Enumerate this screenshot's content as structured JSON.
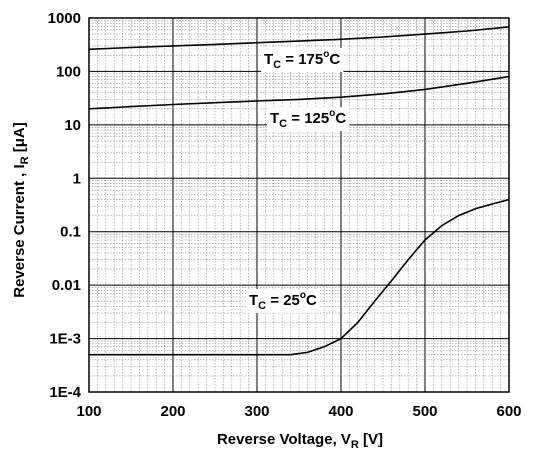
{
  "chart_data": {
    "type": "line",
    "title": "",
    "xlabel": {
      "main": "Reverse Voltage, V",
      "sub": "R",
      "unit": " [V]"
    },
    "ylabel": {
      "main": "Reverse Current , I",
      "sub": "R",
      "unit": " [μA]"
    },
    "xlim": [
      100,
      600
    ],
    "ylim": [
      0.0001,
      1000
    ],
    "yscale": "log",
    "grid": true,
    "x_ticks": [
      "100",
      "200",
      "300",
      "400",
      "500",
      "600"
    ],
    "y_ticks": [
      "1000",
      "100",
      "10",
      "1",
      "0.1",
      "0.01",
      "1E-3",
      "1E-4"
    ],
    "series": [
      {
        "label": {
          "T": "T",
          "sub": "C",
          "eq": " = 175",
          "deg": "o",
          "unit": "C"
        },
        "x": [
          100,
          150,
          200,
          250,
          300,
          350,
          400,
          450,
          500,
          550,
          600
        ],
        "y": [
          260,
          280,
          300,
          320,
          345,
          370,
          400,
          440,
          500,
          570,
          680
        ]
      },
      {
        "label": {
          "T": "T",
          "sub": "C",
          "eq": " = 125",
          "deg": "o",
          "unit": "C"
        },
        "x": [
          100,
          150,
          200,
          250,
          300,
          350,
          400,
          450,
          500,
          550,
          600
        ],
        "y": [
          20,
          22,
          24,
          26,
          28,
          30,
          33,
          38,
          46,
          60,
          80
        ]
      },
      {
        "label": {
          "T": "T",
          "sub": "C",
          "eq": " = 25",
          "deg": "o",
          "unit": "C"
        },
        "x": [
          100,
          150,
          200,
          250,
          300,
          340,
          360,
          380,
          400,
          420,
          440,
          460,
          480,
          500,
          520,
          540,
          560,
          580,
          600
        ],
        "y": [
          0.0005,
          0.0005,
          0.0005,
          0.0005,
          0.0005,
          0.0005,
          0.00055,
          0.0007,
          0.001,
          0.002,
          0.005,
          0.012,
          0.03,
          0.07,
          0.13,
          0.2,
          0.27,
          0.33,
          0.4
        ]
      }
    ]
  }
}
